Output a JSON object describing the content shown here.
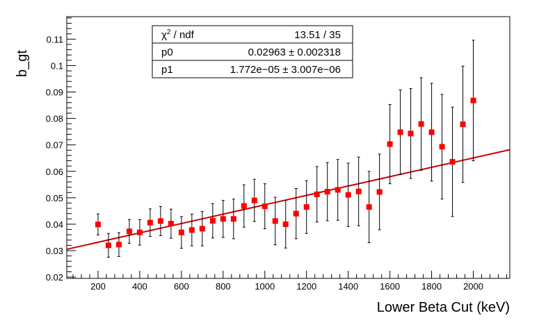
{
  "chart_data": {
    "type": "scatter",
    "title": "",
    "xlabel": "Lower Beta Cut (keV)",
    "ylabel": "b_gt",
    "xlim": [
      50,
      2175
    ],
    "ylim": [
      0.0195,
      0.1185
    ],
    "x_ticks": [
      200,
      400,
      600,
      800,
      1000,
      1200,
      1400,
      1600,
      1800,
      2000
    ],
    "x_tick_labels": [
      "200",
      "400",
      "600",
      "800",
      "1000",
      "1200",
      "1400",
      "1600",
      "1800",
      "2000"
    ],
    "y_ticks": [
      0.02,
      0.03,
      0.04,
      0.05,
      0.06,
      0.07,
      0.08,
      0.09,
      0.1,
      0.11
    ],
    "y_tick_labels": [
      "0.02",
      "0.03",
      "0.04",
      "0.05",
      "0.06",
      "0.07",
      "0.08",
      "0.09",
      "0.1",
      "0.11"
    ],
    "grid": false,
    "series": [
      {
        "color": "#ff0000",
        "marker": "square",
        "points": [
          {
            "x": 200,
            "y": 0.0399,
            "err": 0.004
          },
          {
            "x": 250,
            "y": 0.032,
            "err": 0.0045
          },
          {
            "x": 300,
            "y": 0.0323,
            "err": 0.0045
          },
          {
            "x": 350,
            "y": 0.0373,
            "err": 0.0045
          },
          {
            "x": 400,
            "y": 0.0369,
            "err": 0.0048
          },
          {
            "x": 450,
            "y": 0.0406,
            "err": 0.0052
          },
          {
            "x": 500,
            "y": 0.0412,
            "err": 0.0055
          },
          {
            "x": 550,
            "y": 0.0402,
            "err": 0.0055
          },
          {
            "x": 600,
            "y": 0.0369,
            "err": 0.006
          },
          {
            "x": 650,
            "y": 0.0378,
            "err": 0.006
          },
          {
            "x": 700,
            "y": 0.0383,
            "err": 0.0065
          },
          {
            "x": 750,
            "y": 0.0413,
            "err": 0.0065
          },
          {
            "x": 800,
            "y": 0.042,
            "err": 0.007
          },
          {
            "x": 850,
            "y": 0.042,
            "err": 0.0075
          },
          {
            "x": 900,
            "y": 0.0469,
            "err": 0.008
          },
          {
            "x": 950,
            "y": 0.049,
            "err": 0.008
          },
          {
            "x": 1000,
            "y": 0.0468,
            "err": 0.0085
          },
          {
            "x": 1050,
            "y": 0.0412,
            "err": 0.009
          },
          {
            "x": 1100,
            "y": 0.04,
            "err": 0.009
          },
          {
            "x": 1150,
            "y": 0.044,
            "err": 0.0095
          },
          {
            "x": 1200,
            "y": 0.0465,
            "err": 0.01
          },
          {
            "x": 1250,
            "y": 0.0513,
            "err": 0.0105
          },
          {
            "x": 1300,
            "y": 0.0523,
            "err": 0.011
          },
          {
            "x": 1350,
            "y": 0.053,
            "err": 0.0115
          },
          {
            "x": 1400,
            "y": 0.0511,
            "err": 0.012
          },
          {
            "x": 1450,
            "y": 0.0524,
            "err": 0.013
          },
          {
            "x": 1500,
            "y": 0.0465,
            "err": 0.0135
          },
          {
            "x": 1550,
            "y": 0.0522,
            "err": 0.0143
          },
          {
            "x": 1600,
            "y": 0.0703,
            "err": 0.015
          },
          {
            "x": 1650,
            "y": 0.0748,
            "err": 0.016
          },
          {
            "x": 1700,
            "y": 0.0743,
            "err": 0.017
          },
          {
            "x": 1750,
            "y": 0.0779,
            "err": 0.0175
          },
          {
            "x": 1800,
            "y": 0.0748,
            "err": 0.0185
          },
          {
            "x": 1850,
            "y": 0.0693,
            "err": 0.0198
          },
          {
            "x": 1900,
            "y": 0.0636,
            "err": 0.0207
          },
          {
            "x": 1950,
            "y": 0.0778,
            "err": 0.022
          },
          {
            "x": 2000,
            "y": 0.0868,
            "err": 0.0228
          }
        ]
      }
    ],
    "fit": {
      "type": "linear",
      "color": "#cc0000",
      "intercept": 0.02963,
      "slope": 1.772e-05,
      "x_range": [
        50,
        2175
      ]
    },
    "stats_box": {
      "rows": [
        {
          "label_base": "χ",
          "label_sup": "2",
          "label_rest": " / ndf",
          "value": "13.51 / 35"
        },
        {
          "label": "p0",
          "value": "0.02963 ± 0.002318"
        },
        {
          "label": "p1",
          "value": "1.772e−05 ± 3.007e−06"
        }
      ]
    }
  }
}
